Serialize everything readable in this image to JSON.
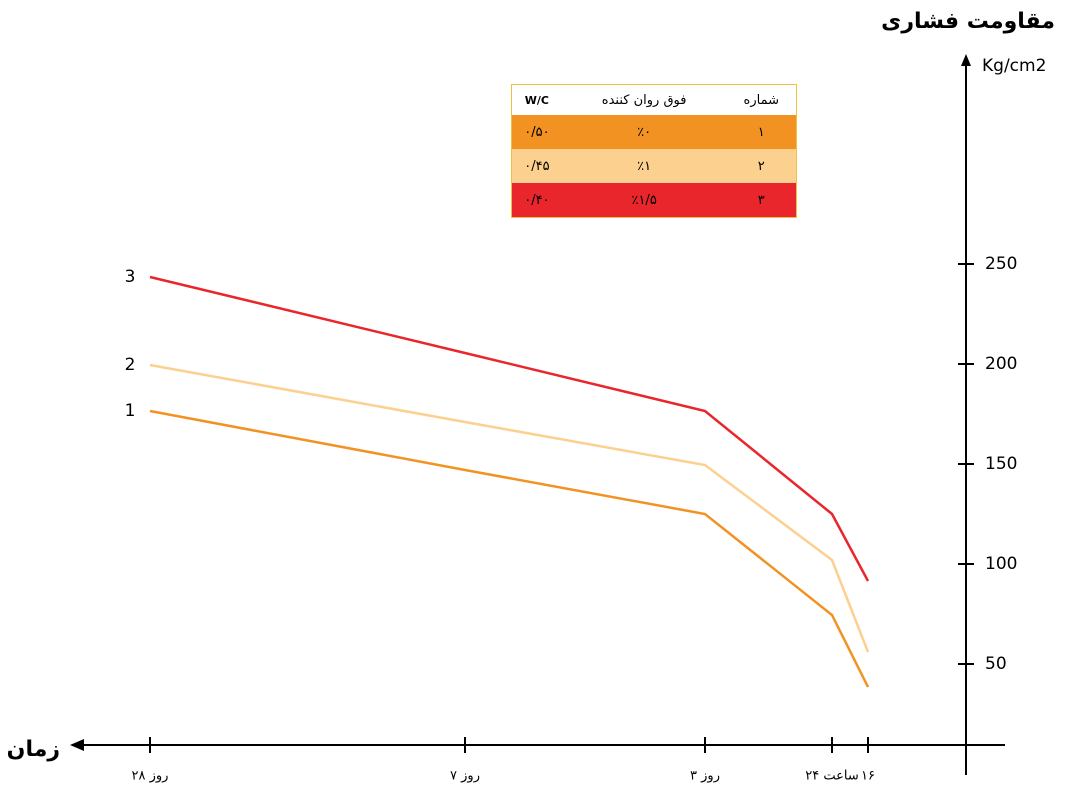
{
  "chart_data": {
    "type": "line",
    "y_label": "مقاومت فشاری",
    "y_unit": "Kg/cm2",
    "x_label": "زمان",
    "categories": [
      "۲۸ روز",
      "۷ روز",
      "۳ روز",
      "۲۴ ساعت",
      "۱۶"
    ],
    "series": [
      {
        "name": "1",
        "color": "#f29222",
        "values": [
          176.5,
          147,
          125,
          74.5,
          38.5
        ]
      },
      {
        "name": "2",
        "color": "#fcd08f",
        "values": [
          199.5,
          171,
          149.5,
          102,
          56
        ]
      },
      {
        "name": "3",
        "color": "#e8262c",
        "values": [
          243.5,
          205.5,
          176.5,
          125,
          91.5
        ]
      }
    ],
    "ylim": [
      10,
      350
    ],
    "yticks": [
      50,
      100,
      150,
      200,
      250
    ],
    "table": {
      "header": [
        "شماره",
        "فوق روان کننده",
        "W/C"
      ],
      "rows": [
        [
          "۱",
          "٪۰",
          "۰/۵۰"
        ],
        [
          "۲",
          "٪۱",
          "۰/۴۵"
        ],
        [
          "۳",
          "٪۱/۵",
          "۰/۴۰"
        ]
      ]
    }
  }
}
